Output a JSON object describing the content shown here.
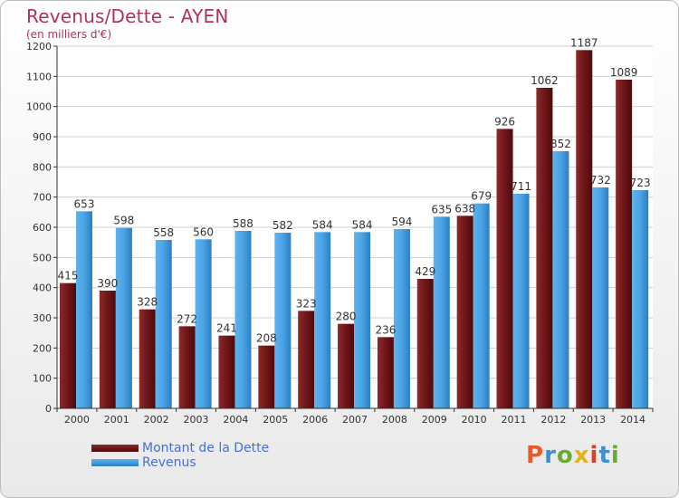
{
  "title": "Revenus/Dette - AYEN",
  "subtitle": "(en milliers d'€)",
  "logo_text": "Proxiti",
  "colors": {
    "debt": "#7a1f22",
    "revenue": "#4aa3e4",
    "title": "#b13060",
    "legend_text": "#4a6fd4"
  },
  "chart_data": {
    "type": "bar",
    "categories": [
      "2000",
      "2001",
      "2002",
      "2003",
      "2004",
      "2005",
      "2006",
      "2007",
      "2008",
      "2009",
      "2010",
      "2011",
      "2012",
      "2013",
      "2014"
    ],
    "series": [
      {
        "name": "Montant de la Dette",
        "values": [
          415,
          390,
          328,
          272,
          241,
          208,
          323,
          280,
          236,
          429,
          638,
          926,
          1062,
          1187,
          1089
        ]
      },
      {
        "name": "Revenus",
        "values": [
          653,
          598,
          558,
          560,
          588,
          582,
          584,
          584,
          594,
          635,
          679,
          711,
          852,
          732,
          723
        ]
      }
    ],
    "ylim": [
      0,
      1200
    ],
    "yticks": [
      0,
      100,
      200,
      300,
      400,
      500,
      600,
      700,
      800,
      900,
      1000,
      1100,
      1200
    ],
    "grid": true,
    "legend": "bottom-left"
  }
}
